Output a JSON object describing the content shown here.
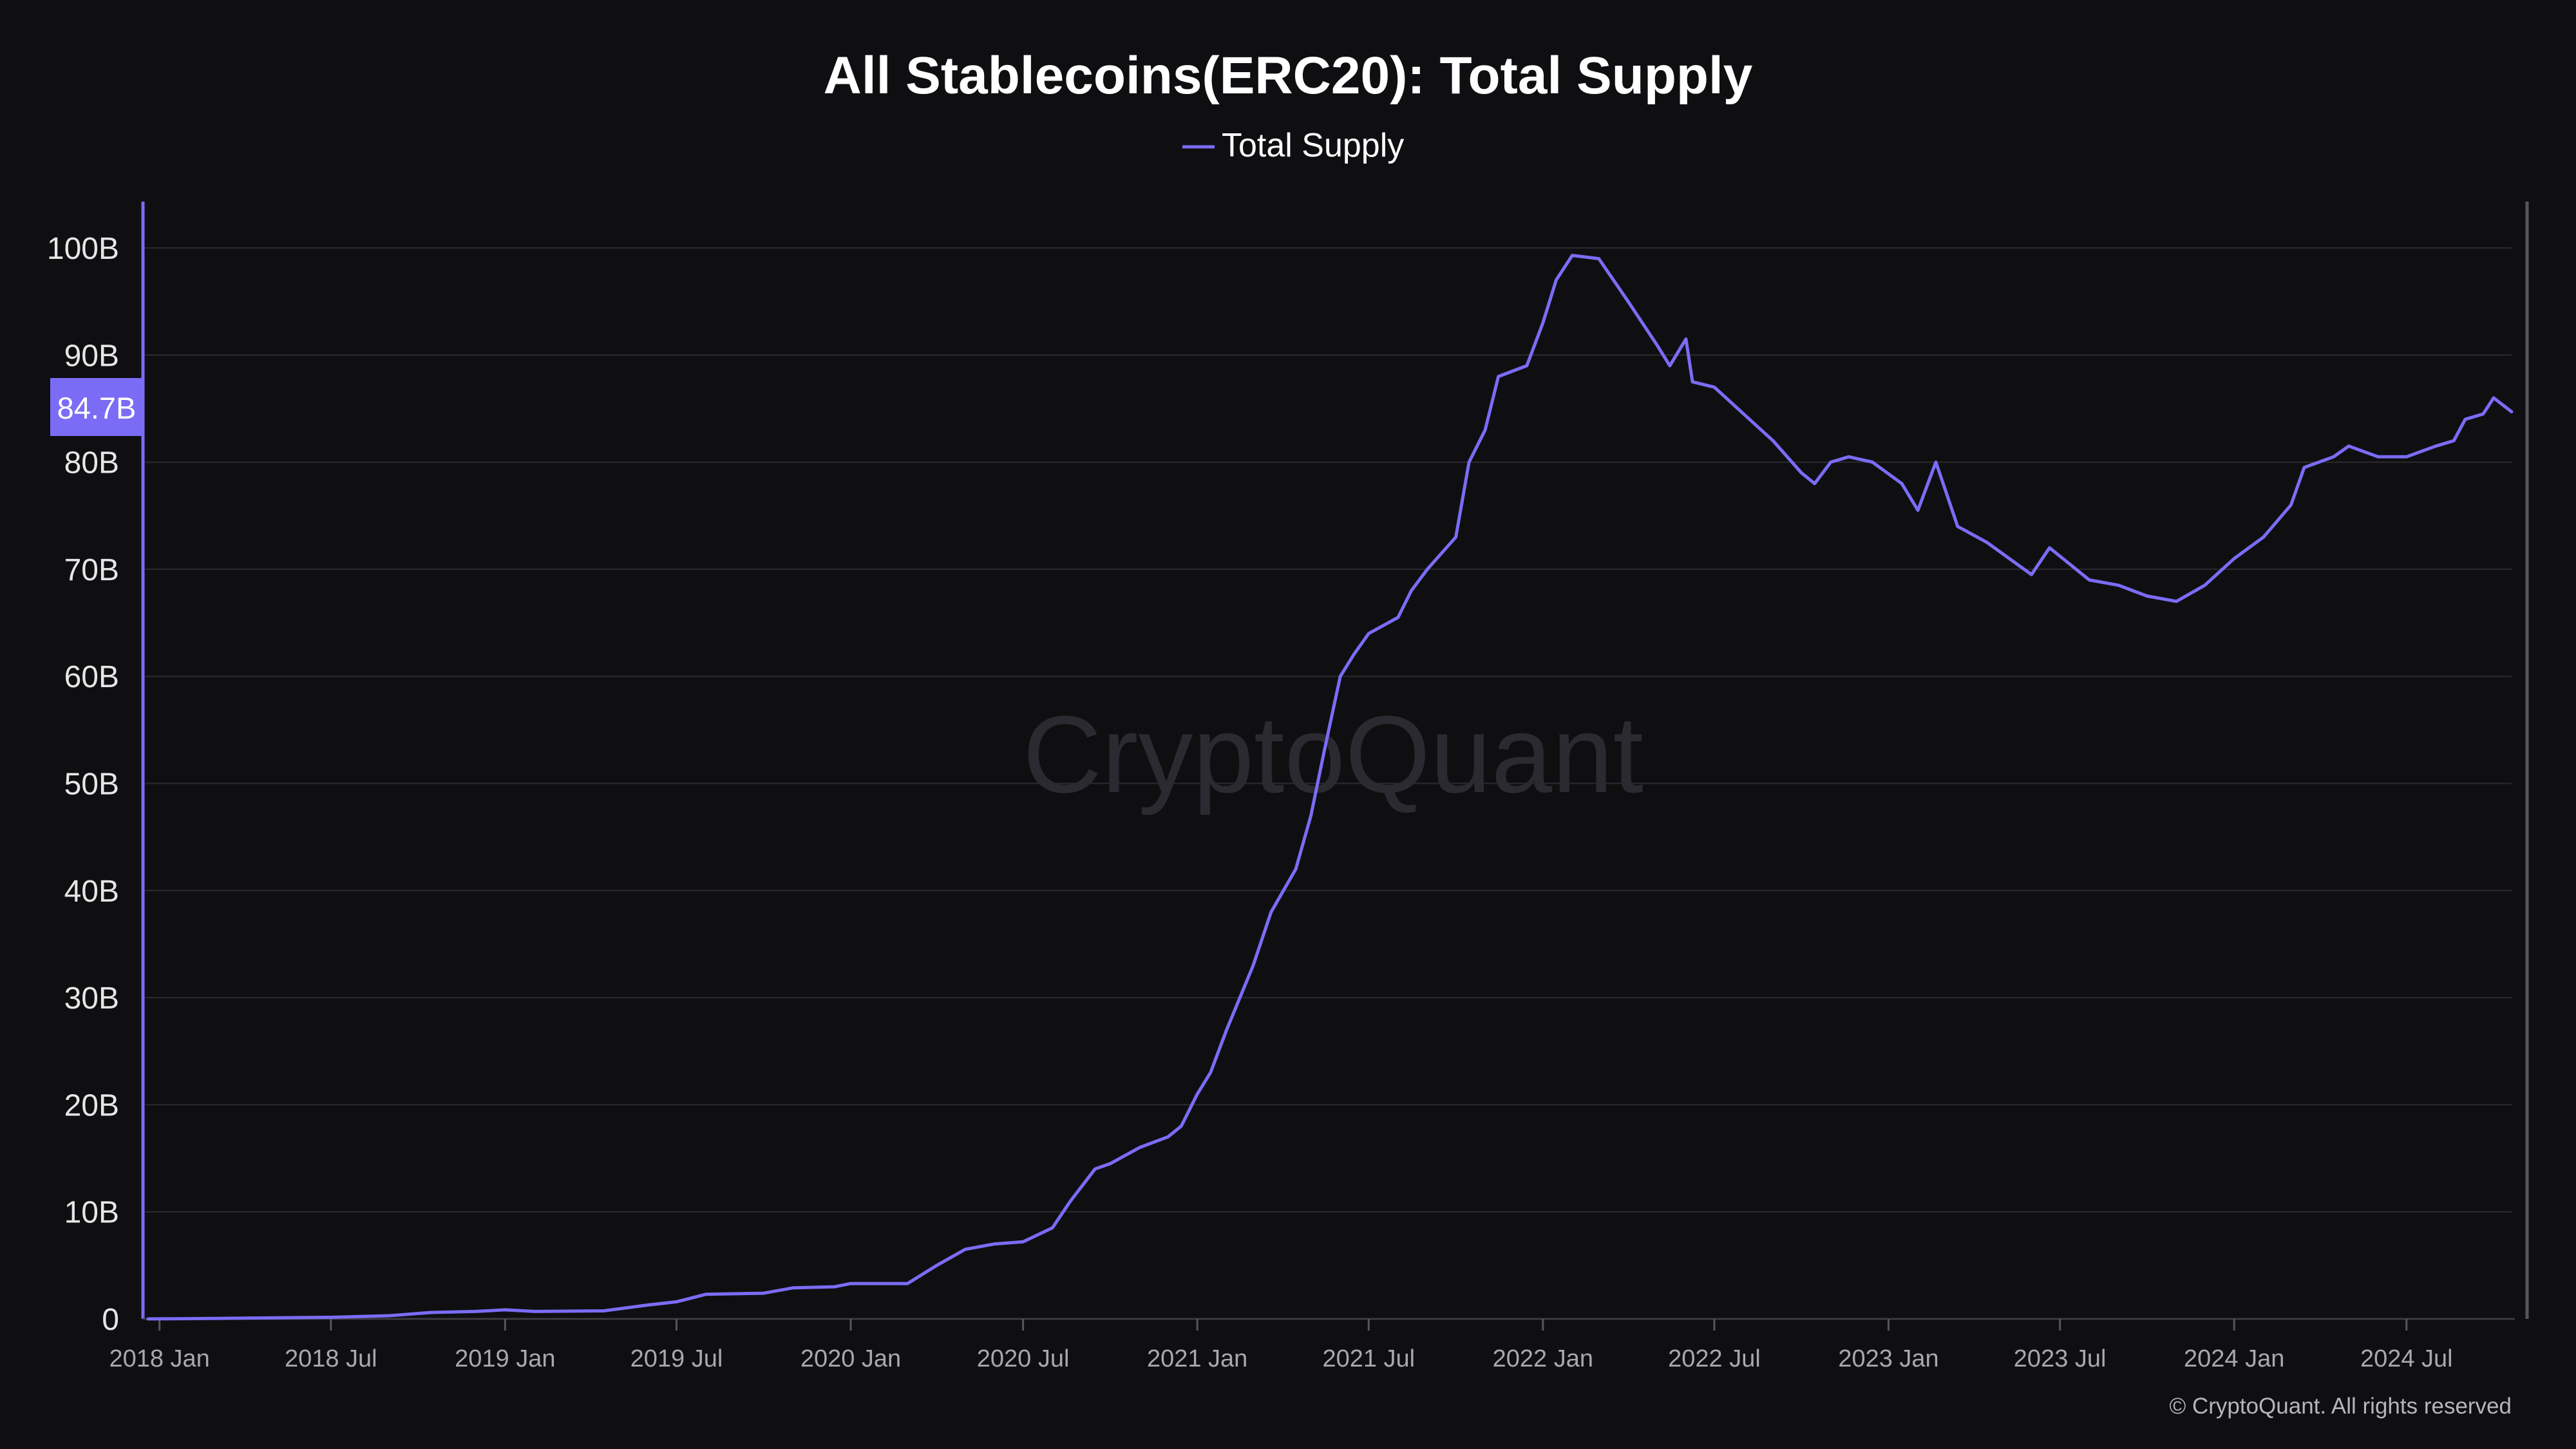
{
  "chart_data": {
    "type": "line",
    "title": "All Stablecoins(ERC20): Total Supply",
    "legend": "top-center",
    "grid": true,
    "ylim": [
      0,
      100000000000
    ],
    "xlim": [
      "2017-12-20",
      "2024-10-20"
    ],
    "y_ticks": [
      "0",
      "10B",
      "20B",
      "30B",
      "40B",
      "50B",
      "60B",
      "70B",
      "80B",
      "90B",
      "100B"
    ],
    "x_ticks": [
      "2018 Jan",
      "2018 Jul",
      "2019 Jan",
      "2019 Jul",
      "2020 Jan",
      "2020 Jul",
      "2021 Jan",
      "2021 Jul",
      "2022 Jan",
      "2022 Jul",
      "2023 Jan",
      "2023 Jul",
      "2024 Jan",
      "2024 Jul"
    ],
    "current_value_label": "84.7B",
    "series": [
      {
        "name": "Total Supply",
        "color": "#7b6cf6",
        "points": [
          [
            "2017-12-20",
            0.0
          ],
          [
            "2018-03-01",
            0.05
          ],
          [
            "2018-07-01",
            0.15
          ],
          [
            "2018-09-01",
            0.3
          ],
          [
            "2018-10-15",
            0.6
          ],
          [
            "2018-12-01",
            0.7
          ],
          [
            "2019-01-01",
            0.85
          ],
          [
            "2019-02-01",
            0.7
          ],
          [
            "2019-04-15",
            0.75
          ],
          [
            "2019-06-01",
            1.3
          ],
          [
            "2019-07-01",
            1.6
          ],
          [
            "2019-08-01",
            2.3
          ],
          [
            "2019-10-01",
            2.4
          ],
          [
            "2019-11-01",
            2.9
          ],
          [
            "2019-12-15",
            3.0
          ],
          [
            "2020-01-01",
            3.3
          ],
          [
            "2020-03-01",
            3.3
          ],
          [
            "2020-04-01",
            5.0
          ],
          [
            "2020-05-01",
            6.5
          ],
          [
            "2020-06-01",
            7.0
          ],
          [
            "2020-07-01",
            7.2
          ],
          [
            "2020-08-01",
            8.5
          ],
          [
            "2020-08-20",
            11.0
          ],
          [
            "2020-09-15",
            14.0
          ],
          [
            "2020-10-01",
            14.5
          ],
          [
            "2020-11-01",
            16.0
          ],
          [
            "2020-12-01",
            17.0
          ],
          [
            "2020-12-15",
            18.0
          ],
          [
            "2021-01-01",
            21.0
          ],
          [
            "2021-01-15",
            23.0
          ],
          [
            "2021-02-01",
            27.0
          ],
          [
            "2021-03-01",
            33.0
          ],
          [
            "2021-03-20",
            38.0
          ],
          [
            "2021-04-15",
            42.0
          ],
          [
            "2021-05-01",
            47.0
          ],
          [
            "2021-05-15",
            53.0
          ],
          [
            "2021-06-01",
            60.0
          ],
          [
            "2021-06-15",
            62.0
          ],
          [
            "2021-07-01",
            64.0
          ],
          [
            "2021-08-01",
            65.5
          ],
          [
            "2021-08-15",
            68.0
          ],
          [
            "2021-09-01",
            70.0
          ],
          [
            "2021-10-01",
            73.0
          ],
          [
            "2021-10-15",
            80.0
          ],
          [
            "2021-11-01",
            83.0
          ],
          [
            "2021-11-15",
            88.0
          ],
          [
            "2021-12-15",
            89.0
          ],
          [
            "2022-01-01",
            93.0
          ],
          [
            "2022-01-15",
            97.0
          ],
          [
            "2022-02-01",
            99.3
          ],
          [
            "2022-03-01",
            99.0
          ],
          [
            "2022-04-01",
            95.0
          ],
          [
            "2022-05-01",
            91.0
          ],
          [
            "2022-05-15",
            89.0
          ],
          [
            "2022-06-01",
            91.5
          ],
          [
            "2022-06-08",
            87.5
          ],
          [
            "2022-07-01",
            87.0
          ],
          [
            "2022-08-01",
            84.5
          ],
          [
            "2022-09-01",
            82.0
          ],
          [
            "2022-10-01",
            79.0
          ],
          [
            "2022-10-15",
            78.0
          ],
          [
            "2022-11-01",
            80.0
          ],
          [
            "2022-11-20",
            80.5
          ],
          [
            "2022-12-15",
            80.0
          ],
          [
            "2023-01-15",
            78.0
          ],
          [
            "2023-02-01",
            75.5
          ],
          [
            "2023-02-20",
            80.0
          ],
          [
            "2023-03-15",
            74.0
          ],
          [
            "2023-04-15",
            72.5
          ],
          [
            "2023-06-01",
            69.5
          ],
          [
            "2023-06-20",
            72.0
          ],
          [
            "2023-08-01",
            69.0
          ],
          [
            "2023-09-01",
            68.5
          ],
          [
            "2023-10-01",
            67.5
          ],
          [
            "2023-11-01",
            67.0
          ],
          [
            "2023-12-01",
            68.5
          ],
          [
            "2024-01-01",
            71.0
          ],
          [
            "2024-02-01",
            73.0
          ],
          [
            "2024-03-01",
            76.0
          ],
          [
            "2024-03-15",
            79.5
          ],
          [
            "2024-04-15",
            80.5
          ],
          [
            "2024-05-01",
            81.5
          ],
          [
            "2024-06-01",
            80.5
          ],
          [
            "2024-07-01",
            80.5
          ],
          [
            "2024-08-01",
            81.5
          ],
          [
            "2024-08-20",
            82.0
          ],
          [
            "2024-09-01",
            84.0
          ],
          [
            "2024-09-20",
            84.5
          ],
          [
            "2024-10-01",
            86.0
          ],
          [
            "2024-10-20",
            84.7
          ]
        ]
      }
    ]
  },
  "watermark": "CryptoQuant",
  "copyright": "© CryptoQuant. All rights reserved"
}
